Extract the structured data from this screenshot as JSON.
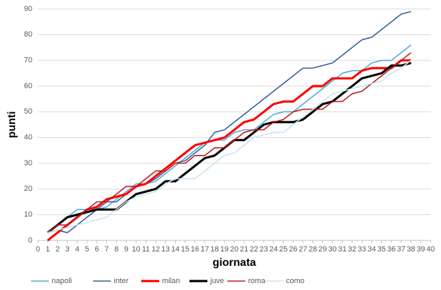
{
  "chart_data": {
    "type": "line",
    "x_label": "giornata",
    "y_label": "punti",
    "x": [
      1,
      2,
      3,
      4,
      5,
      6,
      7,
      8,
      9,
      10,
      11,
      12,
      13,
      14,
      15,
      16,
      17,
      18,
      19,
      20,
      21,
      22,
      23,
      24,
      25,
      26,
      27,
      28,
      29,
      30,
      31,
      32,
      33,
      34,
      35,
      36,
      37,
      38
    ],
    "xlim": [
      0,
      40
    ],
    "xticks": [
      0,
      1,
      2,
      3,
      4,
      5,
      6,
      7,
      8,
      9,
      10,
      11,
      12,
      13,
      14,
      15,
      16,
      17,
      18,
      19,
      20,
      21,
      22,
      23,
      24,
      25,
      26,
      27,
      28,
      29,
      30,
      31,
      32,
      33,
      34,
      35,
      36,
      37,
      38,
      39,
      40
    ],
    "ylim": [
      0,
      90
    ],
    "yticks": [
      0,
      10,
      20,
      30,
      40,
      50,
      60,
      70,
      80,
      90
    ],
    "grid": true,
    "legend": "bottom",
    "series": [
      {
        "name": "napoli",
        "color": "#4ea9dd",
        "width": 1.6,
        "values": [
          3,
          6,
          9,
          12,
          12,
          12,
          13,
          16,
          19,
          22,
          22,
          23,
          26,
          29,
          32,
          35,
          38,
          39,
          39,
          42,
          43,
          43,
          46,
          49,
          50,
          50,
          53,
          56,
          59,
          62,
          65,
          66,
          66,
          69,
          70,
          70,
          73,
          76
        ]
      },
      {
        "name": "inter",
        "color": "#2f5f92",
        "width": 1.6,
        "values": [
          3,
          4,
          3,
          6,
          9,
          12,
          15,
          15,
          18,
          21,
          22,
          24,
          27,
          30,
          31,
          34,
          37,
          42,
          43,
          46,
          49,
          52,
          55,
          58,
          61,
          64,
          67,
          67,
          68,
          69,
          72,
          75,
          78,
          79,
          82,
          85,
          88,
          89
        ]
      },
      {
        "name": "milan",
        "color": "#ff0000",
        "width": 3.2,
        "values": [
          0,
          3,
          6,
          9,
          12,
          13,
          16,
          17,
          18,
          21,
          22,
          25,
          28,
          31,
          34,
          37,
          38,
          39,
          40,
          43,
          46,
          47,
          50,
          53,
          54,
          54,
          57,
          60,
          60,
          63,
          63,
          63,
          66,
          67,
          67,
          67,
          70,
          70
        ]
      },
      {
        "name": "juve",
        "color": "#000000",
        "width": 3.2,
        "values": [
          3,
          6,
          9,
          10,
          11,
          12,
          12,
          12,
          15,
          18,
          19,
          20,
          23,
          23,
          26,
          29,
          32,
          33,
          36,
          39,
          39,
          42,
          45,
          46,
          46,
          46,
          47,
          50,
          53,
          54,
          57,
          60,
          63,
          64,
          65,
          68,
          68,
          69
        ]
      },
      {
        "name": "roma",
        "color": "#c0151d",
        "width": 1.6,
        "values": [
          3,
          6,
          6,
          9,
          12,
          15,
          15,
          18,
          21,
          21,
          24,
          27,
          27,
          30,
          30,
          33,
          33,
          36,
          36,
          39,
          42,
          43,
          43,
          46,
          47,
          50,
          51,
          51,
          51,
          54,
          54,
          57,
          58,
          61,
          64,
          67,
          70,
          73
        ]
      },
      {
        "name": "como",
        "color": "#c6e4f5",
        "width": 1.6,
        "values": [
          3,
          4,
          5,
          6,
          7,
          8,
          9,
          12,
          15,
          17,
          18,
          19,
          22,
          24,
          24,
          24,
          27,
          30,
          33,
          34,
          37,
          40,
          41,
          42,
          42,
          45,
          48,
          51,
          54,
          57,
          58,
          59,
          60,
          61,
          62,
          65,
          67,
          70
        ]
      }
    ]
  }
}
